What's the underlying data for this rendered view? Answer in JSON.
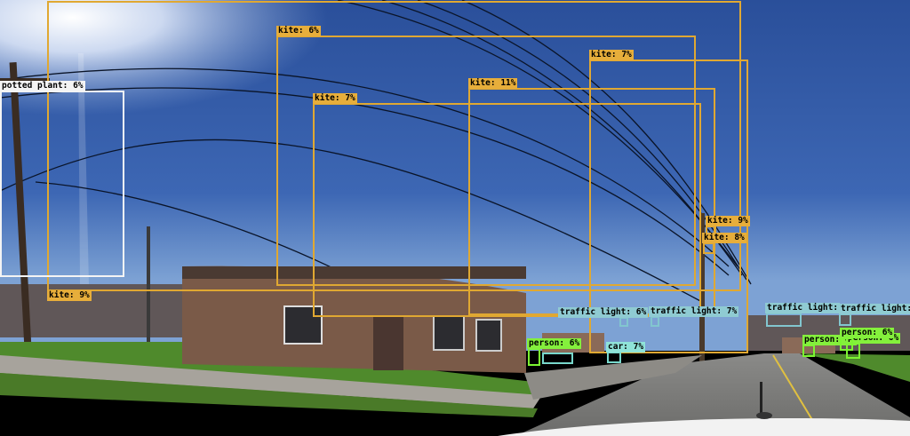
{
  "detections": [
    {
      "id": "kite-large",
      "label": "kite: 9%",
      "category": "kite"
    },
    {
      "id": "kite-a",
      "label": "kite: 6%",
      "category": "kite"
    },
    {
      "id": "kite-b",
      "label": "kite: 7%",
      "category": "kite"
    },
    {
      "id": "kite-c",
      "label": "kite: 11%",
      "category": "kite"
    },
    {
      "id": "kite-d",
      "label": "kite: 7%",
      "category": "kite"
    },
    {
      "id": "kite-e",
      "label": "kite: 9%",
      "category": "kite"
    },
    {
      "id": "kite-f",
      "label": "kite: 8%",
      "category": "kite"
    },
    {
      "id": "potted-plant",
      "label": "potted plant: 6%",
      "category": "potted plant"
    },
    {
      "id": "traffic-light-a",
      "label": "traffic light: 6%",
      "category": "traffic light"
    },
    {
      "id": "traffic-light-b",
      "label": "traffic light: 7%",
      "category": "traffic light"
    },
    {
      "id": "traffic-light-c",
      "label": "traffic light:",
      "category": "traffic light"
    },
    {
      "id": "traffic-light-d",
      "label": "traffic light:",
      "category": "traffic light"
    },
    {
      "id": "person-a",
      "label": "person: 6%",
      "category": "person"
    },
    {
      "id": "person-b",
      "label": "person: 6%",
      "category": "person"
    },
    {
      "id": "person-c",
      "label": "person: 6%",
      "category": "person"
    },
    {
      "id": "person-d",
      "label": "person: 6%",
      "category": "person"
    },
    {
      "id": "car",
      "label": "car: 7%",
      "category": "car"
    }
  ],
  "colors": {
    "kite": "#e0a832",
    "potted_plant": "#f4f4f4",
    "traffic_light": "#82c6cf",
    "person": "#7cf531",
    "car": "#78d8cc"
  }
}
